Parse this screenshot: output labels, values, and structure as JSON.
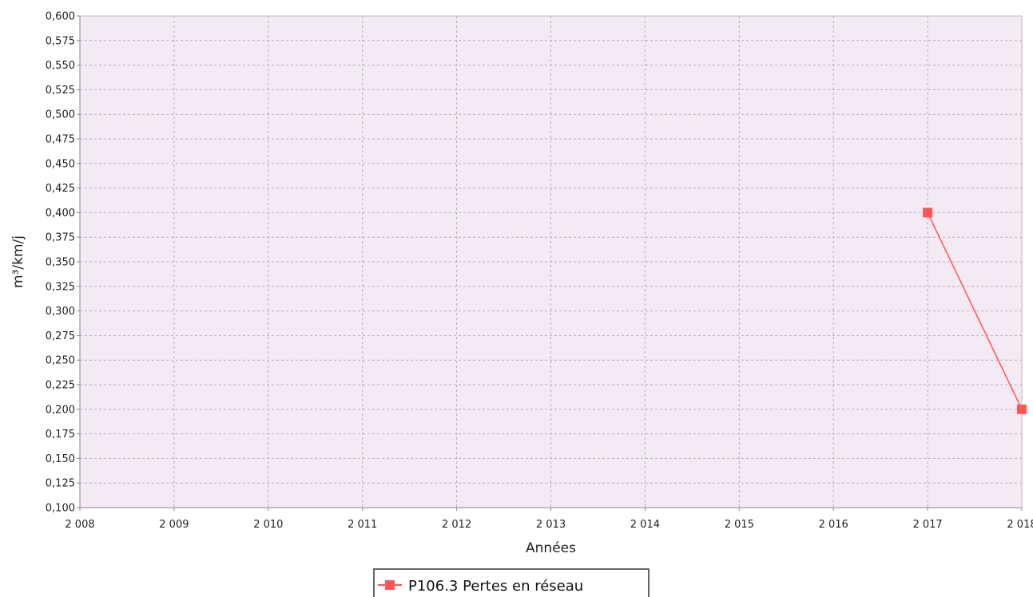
{
  "chart_data": {
    "type": "line",
    "xlabel": "Années",
    "ylabel": "m³/km/j",
    "xlim": [
      2008,
      2018
    ],
    "ylim": [
      0.1,
      0.6
    ],
    "x_ticks": [
      2008,
      2009,
      2010,
      2011,
      2012,
      2013,
      2014,
      2015,
      2016,
      2017,
      2018
    ],
    "x_tick_labels": [
      "2 008",
      "2 009",
      "2 010",
      "2 011",
      "2 012",
      "2 013",
      "2 014",
      "2 015",
      "2 016",
      "2 017",
      "2 018"
    ],
    "y_ticks": [
      0.1,
      0.125,
      0.15,
      0.175,
      0.2,
      0.225,
      0.25,
      0.275,
      0.3,
      0.325,
      0.35,
      0.375,
      0.4,
      0.425,
      0.45,
      0.475,
      0.5,
      0.525,
      0.55,
      0.575,
      0.6
    ],
    "y_tick_labels": [
      "0,100",
      "0,125",
      "0,150",
      "0,175",
      "0,200",
      "0,225",
      "0,250",
      "0,275",
      "0,300",
      "0,325",
      "0,350",
      "0,375",
      "0,400",
      "0,425",
      "0,450",
      "0,475",
      "0,500",
      "0,525",
      "0,550",
      "0,575",
      "0,600"
    ],
    "grid": true,
    "legend_position": "bottom-center",
    "series": [
      {
        "name": "P106.3 Pertes en réseau",
        "color": "#ff5555",
        "marker": "square",
        "x": [
          2017,
          2018
        ],
        "y": [
          0.4,
          0.2
        ]
      }
    ],
    "colors": {
      "plot_background": "#f3eaf3",
      "grid": "#c8a6c8",
      "axis": "#888888"
    }
  }
}
